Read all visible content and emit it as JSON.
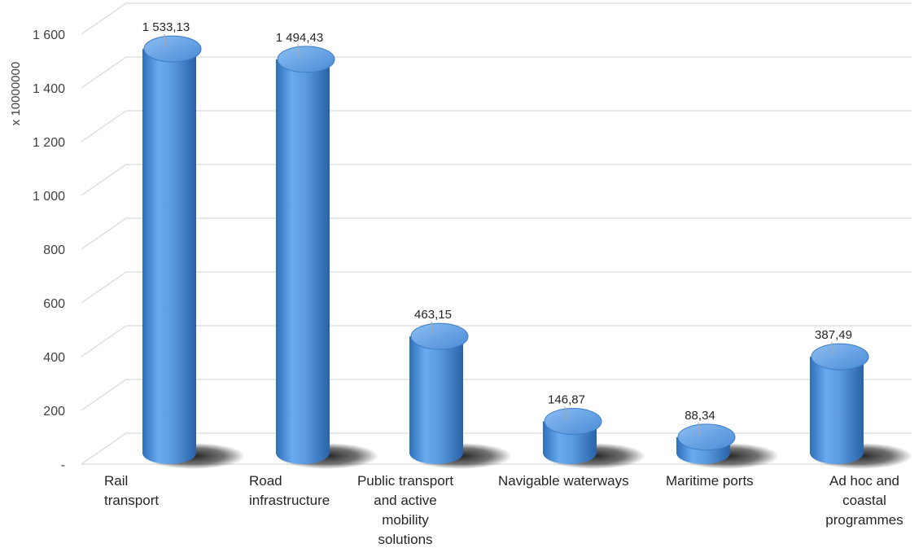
{
  "chart_data": {
    "type": "bar",
    "style": "3d-cylinder",
    "title": "",
    "xlabel": "",
    "ylabel": "x 10000000",
    "ylim": [
      0,
      1700
    ],
    "y_tick_labels": [
      "-",
      "200",
      "400",
      "600",
      "800",
      "1 000",
      "1 200",
      "1 400",
      "1 600"
    ],
    "categories": [
      [
        "Rail",
        "transport"
      ],
      [
        "Road",
        "infrastructure"
      ],
      [
        "Public transport",
        "and active",
        "mobility",
        "solutions"
      ],
      [
        "Navigable waterways"
      ],
      [
        "Maritime ports"
      ],
      [
        "Ad hoc and",
        "coastal",
        "programmes"
      ]
    ],
    "values": [
      1533.13,
      1494.43,
      463.15,
      146.87,
      88.34,
      387.49
    ],
    "data_labels": [
      "1 533,13",
      "1 494,43",
      "463,15",
      "146,87",
      "88,34",
      "387,49"
    ],
    "grid": true,
    "legend": "none",
    "colors": {
      "bar_light": "#9cc6f0",
      "bar_mid": "#4a90d9",
      "bar_dark": "#2d6fb8",
      "bar_top": "#6aa8e8",
      "grid": "#d9d9d9",
      "shadow": "#000000"
    }
  }
}
